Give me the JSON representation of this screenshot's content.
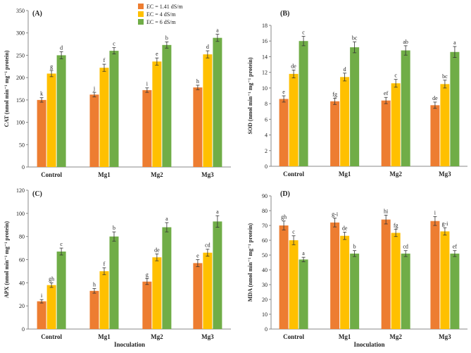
{
  "legend": {
    "entries": [
      "EC = 1.41 dS/m",
      "EC = 4 dS/m",
      "EC = 6 dS/m"
    ],
    "colors": [
      "#ED7D31",
      "#FFC000",
      "#70AD47"
    ]
  },
  "chart_data": [
    {
      "type": "bar",
      "panel_label": "(A)",
      "title": "",
      "ylabel": "CAT (nmol min⁻¹ mg⁻¹ protein)",
      "xlabel": "",
      "categories": [
        "Control",
        "Mg1",
        "Mg2",
        "Mg3"
      ],
      "ylim": [
        0,
        350
      ],
      "yticks": [
        0,
        50,
        100,
        150,
        200,
        250,
        300,
        350
      ],
      "series": [
        {
          "name": "EC = 1.41 dS/m",
          "values": [
            150,
            162,
            172,
            178
          ],
          "errors": [
            5,
            5,
            5,
            5
          ],
          "letters": [
            "k",
            "j",
            "i",
            "h"
          ]
        },
        {
          "name": "EC = 4 dS/m",
          "values": [
            209,
            222,
            236,
            252
          ],
          "errors": [
            7,
            8,
            8,
            8
          ],
          "letters": [
            "g",
            "f",
            "e",
            "d"
          ]
        },
        {
          "name": "EC = 6 dS/m",
          "values": [
            250,
            260,
            273,
            289
          ],
          "errors": [
            8,
            7,
            7,
            8
          ],
          "letters": [
            "d",
            "c",
            "b",
            "a"
          ]
        }
      ]
    },
    {
      "type": "bar",
      "panel_label": "(B)",
      "title": "",
      "ylabel": "SOD (nmol min⁻¹ mg⁻¹ protein)",
      "xlabel": "",
      "categories": [
        "Control",
        "Mg1",
        "Mg2",
        "Mg3"
      ],
      "ylim": [
        0,
        18
      ],
      "yticks": [
        0,
        2,
        4,
        6,
        8,
        10,
        12,
        14,
        16,
        18
      ],
      "series": [
        {
          "name": "EC = 1.41 dS/m",
          "values": [
            8.6,
            8.3,
            8.4,
            7.8
          ],
          "errors": [
            0.4,
            0.4,
            0.4,
            0.4
          ],
          "letters": [
            "e",
            "fg",
            "ef",
            "de"
          ]
        },
        {
          "name": "EC = 4 dS/m",
          "values": [
            11.8,
            11.4,
            10.6,
            10.5
          ],
          "errors": [
            0.5,
            0.5,
            0.5,
            0.5
          ],
          "letters": [
            "de",
            "d",
            "c",
            "bc"
          ]
        },
        {
          "name": "EC = 6 dS/m",
          "values": [
            16.0,
            15.2,
            14.8,
            14.6
          ],
          "errors": [
            0.6,
            0.7,
            0.6,
            0.7
          ],
          "letters": [
            "c",
            "bc",
            "ab",
            "a"
          ]
        }
      ]
    },
    {
      "type": "bar",
      "panel_label": "(C)",
      "title": "",
      "ylabel": "APX (nmol min⁻¹ mg⁻¹ protein)",
      "xlabel": "Inoculation",
      "categories": [
        "Control",
        "Mg1",
        "Mg2",
        "Mg3"
      ],
      "ylim": [
        0,
        120
      ],
      "yticks": [
        0,
        20,
        40,
        60,
        80,
        100,
        120
      ],
      "series": [
        {
          "name": "EC = 1.41 dS/m",
          "values": [
            24,
            33,
            41,
            57
          ],
          "errors": [
            1.5,
            2,
            2.5,
            3
          ],
          "letters": [
            "i",
            "h",
            "g",
            "e"
          ]
        },
        {
          "name": "EC = 4 dS/m",
          "values": [
            38,
            50,
            62,
            66
          ],
          "errors": [
            2,
            3,
            3,
            3
          ],
          "letters": [
            "gh",
            "f",
            "de",
            "cd"
          ]
        },
        {
          "name": "EC = 6 dS/m",
          "values": [
            67,
            80,
            88,
            93
          ],
          "errors": [
            3,
            4,
            4,
            5
          ],
          "letters": [
            "c",
            "b",
            "a",
            "a"
          ]
        }
      ]
    },
    {
      "type": "bar",
      "panel_label": "(D)",
      "title": "",
      "ylabel": "MDA (nmol min⁻¹ mg⁻¹ protein)",
      "xlabel": "Inoculation",
      "categories": [
        "Control",
        "Mg1",
        "Mg2",
        "Mg3"
      ],
      "ylim": [
        0,
        90
      ],
      "yticks": [
        0,
        10,
        20,
        30,
        40,
        50,
        60,
        70,
        80,
        90
      ],
      "series": [
        {
          "name": "EC = 1.41 dS/m",
          "values": [
            70,
            72,
            74,
            73
          ],
          "errors": [
            3,
            3,
            3,
            3
          ],
          "letters": [
            "gh",
            "g-i",
            "hi",
            "i"
          ]
        },
        {
          "name": "EC = 4 dS/m",
          "values": [
            60,
            63,
            65,
            66
          ],
          "errors": [
            3,
            2.5,
            2.5,
            2.5
          ],
          "letters": [
            "c",
            "de",
            "fg",
            "g-i"
          ]
        },
        {
          "name": "EC = 6 dS/m",
          "values": [
            47,
            51,
            51,
            51
          ],
          "errors": [
            1.5,
            2,
            2,
            2
          ],
          "letters": [
            "a",
            "b",
            "cd",
            "ef"
          ]
        }
      ]
    }
  ]
}
